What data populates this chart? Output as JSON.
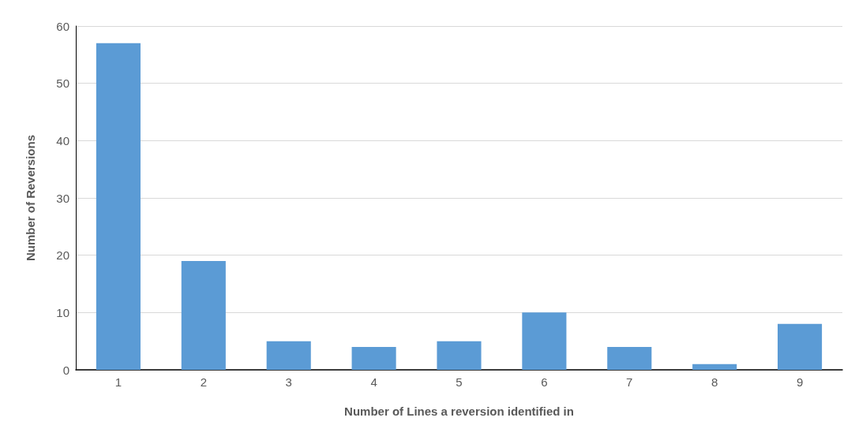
{
  "chart_data": {
    "type": "bar",
    "xlabel": "Number of Lines a reversion identified in",
    "ylabel": "Number of Reversions",
    "categories": [
      "1",
      "2",
      "3",
      "4",
      "5",
      "6",
      "7",
      "8",
      "9"
    ],
    "values": [
      57,
      19,
      5,
      4,
      5,
      10,
      4,
      1,
      8
    ],
    "color": "#5b9bd5",
    "ylim": [
      0,
      60
    ],
    "yticks": [
      0,
      10,
      20,
      30,
      40,
      50,
      60
    ],
    "grid": "y"
  }
}
